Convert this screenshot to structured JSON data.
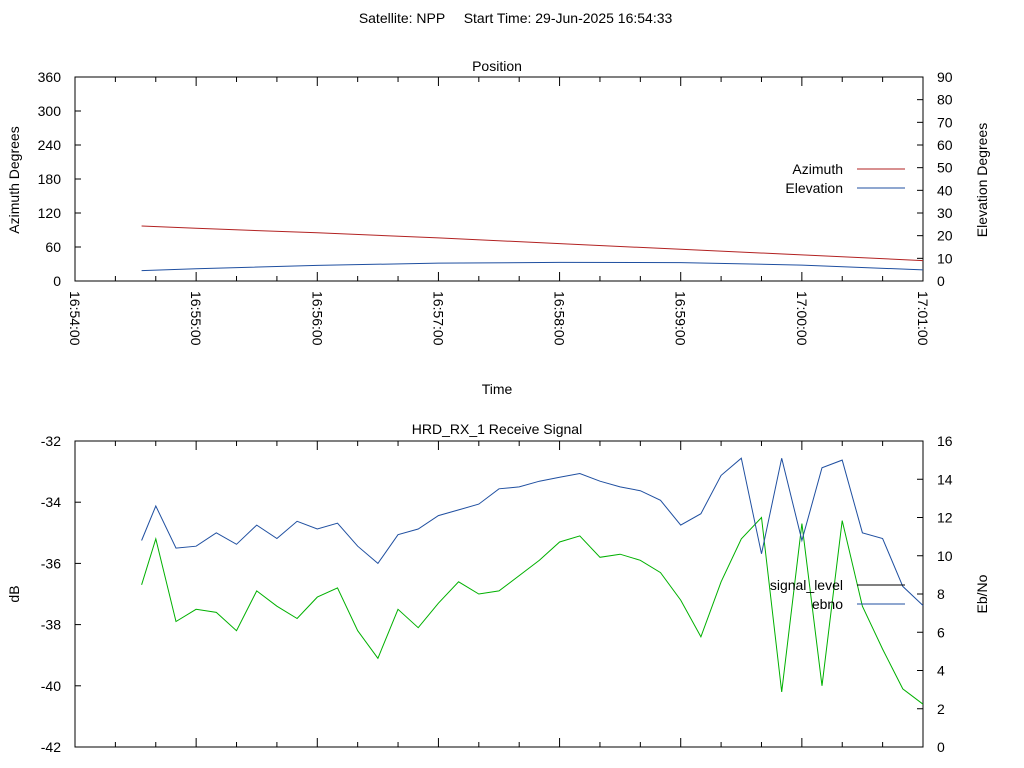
{
  "header": {
    "satellite": "Satellite: NPP",
    "start_time": "Start Time: 29-Jun-2025 16:54:33"
  },
  "colors": {
    "azimuth": "#b22222",
    "elevation": "#1f4fa0",
    "signal_level": "#00b000",
    "ebno": "#1f4fa0",
    "signal_level_legend": "#000000"
  },
  "chart_data": [
    {
      "type": "line",
      "title": "Position",
      "xlabel": "Time",
      "ylabel": "Azimuth Degrees",
      "y2label": "Elevation Degrees",
      "xlim": [
        "16:54:00",
        "17:01:00"
      ],
      "x_ticks": [
        "16:54:00",
        "16:55:00",
        "16:56:00",
        "16:57:00",
        "16:58:00",
        "16:59:00",
        "17:00:00",
        "17:01:00"
      ],
      "ylim": [
        0,
        360
      ],
      "y_ticks": [
        "0",
        "60",
        "120",
        "180",
        "240",
        "300",
        "360"
      ],
      "y2lim": [
        0,
        90
      ],
      "y2_ticks": [
        "0",
        "10",
        "20",
        "30",
        "40",
        "50",
        "60",
        "70",
        "80",
        "90"
      ],
      "legend_position": "right",
      "grid": false,
      "series": [
        {
          "name": "Azimuth",
          "axis": "y",
          "x": [
            "16:54:33",
            "16:55:00",
            "16:56:00",
            "16:57:00",
            "16:58:00",
            "16:59:00",
            "17:00:00",
            "17:01:00"
          ],
          "y": [
            97,
            93,
            85,
            76,
            66,
            56,
            46,
            36
          ]
        },
        {
          "name": "Elevation",
          "axis": "y2",
          "x": [
            "16:54:33",
            "16:55:00",
            "16:56:00",
            "16:57:00",
            "16:58:00",
            "16:59:00",
            "17:00:00",
            "17:01:00"
          ],
          "y": [
            4.6,
            5.4,
            6.9,
            7.9,
            8.2,
            8.1,
            7.0,
            4.9
          ]
        }
      ]
    },
    {
      "type": "line",
      "title": "HRD_RX_1 Receive Signal",
      "ylabel": "dB",
      "y2label": "Eb/No",
      "xlim": [
        "16:54:00",
        "17:01:00"
      ],
      "ylim": [
        -42,
        -32
      ],
      "y_ticks": [
        "-42",
        "-40",
        "-38",
        "-36",
        "-34",
        "-32"
      ],
      "y2lim": [
        0,
        16
      ],
      "y2_ticks": [
        "0",
        "2",
        "4",
        "6",
        "8",
        "10",
        "12",
        "14",
        "16"
      ],
      "legend_position": "right",
      "grid": false,
      "x": [
        "16:54:33",
        "16:54:40",
        "16:54:50",
        "16:55:00",
        "16:55:10",
        "16:55:20",
        "16:55:30",
        "16:55:40",
        "16:55:50",
        "16:56:00",
        "16:56:10",
        "16:56:20",
        "16:56:30",
        "16:56:40",
        "16:56:50",
        "16:57:00",
        "16:57:10",
        "16:57:20",
        "16:57:30",
        "16:57:40",
        "16:57:50",
        "16:58:00",
        "16:58:10",
        "16:58:20",
        "16:58:30",
        "16:58:40",
        "16:58:50",
        "16:59:00",
        "16:59:10",
        "16:59:20",
        "16:59:30",
        "16:59:40",
        "16:59:50",
        "17:00:00",
        "17:00:10",
        "17:00:20",
        "17:00:30",
        "17:00:40",
        "17:00:50",
        "17:01:00"
      ],
      "series": [
        {
          "name": "signal_level",
          "axis": "y",
          "values": [
            -36.7,
            -35.2,
            -37.9,
            -37.5,
            -37.6,
            -38.2,
            -36.9,
            -37.4,
            -37.8,
            -37.1,
            -36.8,
            -38.2,
            -39.1,
            -37.5,
            -38.1,
            -37.3,
            -36.6,
            -37.0,
            -36.9,
            -36.4,
            -35.9,
            -35.3,
            -35.1,
            -35.8,
            -35.7,
            -35.9,
            -36.3,
            -37.2,
            -38.4,
            -36.6,
            -35.2,
            -34.5,
            -40.2,
            -34.7,
            -40.0,
            -34.6,
            -37.4,
            -38.8,
            -40.1,
            -40.6
          ]
        },
        {
          "name": "ebno",
          "axis": "y2",
          "values": [
            10.8,
            12.6,
            10.4,
            10.5,
            11.2,
            10.6,
            11.6,
            10.9,
            11.8,
            11.4,
            11.7,
            10.5,
            9.6,
            11.1,
            11.4,
            12.1,
            12.4,
            12.7,
            13.5,
            13.6,
            13.9,
            14.1,
            14.3,
            13.9,
            13.6,
            13.4,
            12.9,
            11.6,
            12.2,
            14.2,
            15.1,
            10.1,
            15.1,
            10.8,
            14.6,
            15.0,
            11.2,
            10.9,
            8.4,
            7.4
          ]
        }
      ]
    }
  ]
}
